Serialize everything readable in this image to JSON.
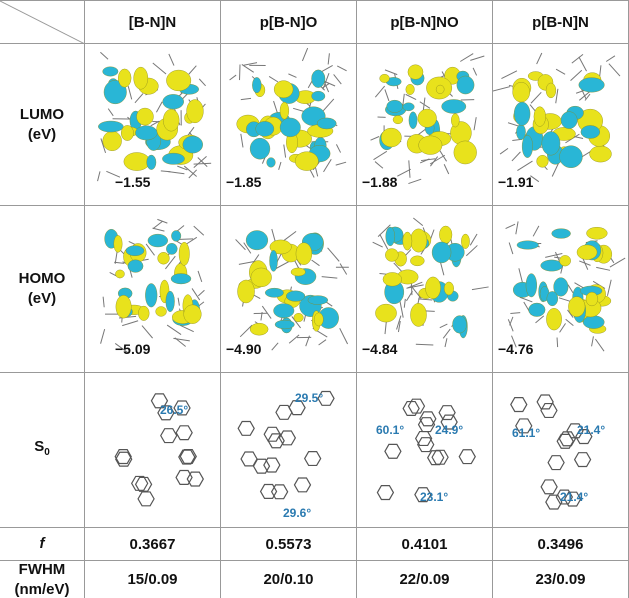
{
  "table": {
    "columns": [
      "[B-N]N",
      "p[B-N]O",
      "p[B-N]NO",
      "p[B-N]N"
    ],
    "rows": [
      {
        "label": [
          "LUMO",
          "(eV)"
        ],
        "values": [
          "−1.55",
          "−1.85",
          "−1.88",
          "−1.91"
        ]
      },
      {
        "label": [
          "HOMO",
          "(eV)"
        ],
        "values": [
          "−5.09",
          "−4.90",
          "−4.84",
          "−4.76"
        ]
      },
      {
        "label": {
          "main": "S",
          "sub": "0"
        },
        "angles": [
          [
            "26.5°"
          ],
          [
            "29.5°",
            "29.6°"
          ],
          [
            "24.9°",
            "60.1°",
            "23.1°"
          ],
          [
            "21.4°",
            "61.1°",
            "21.4°"
          ]
        ]
      },
      {
        "label": "f",
        "values": [
          "0.3667",
          "0.5573",
          "0.4101",
          "0.3496"
        ]
      },
      {
        "label": [
          "FWHM",
          "(nm/eV)"
        ],
        "values": [
          "15/0.09",
          "20/0.10",
          "22/0.09",
          "23/0.09"
        ]
      }
    ]
  }
}
